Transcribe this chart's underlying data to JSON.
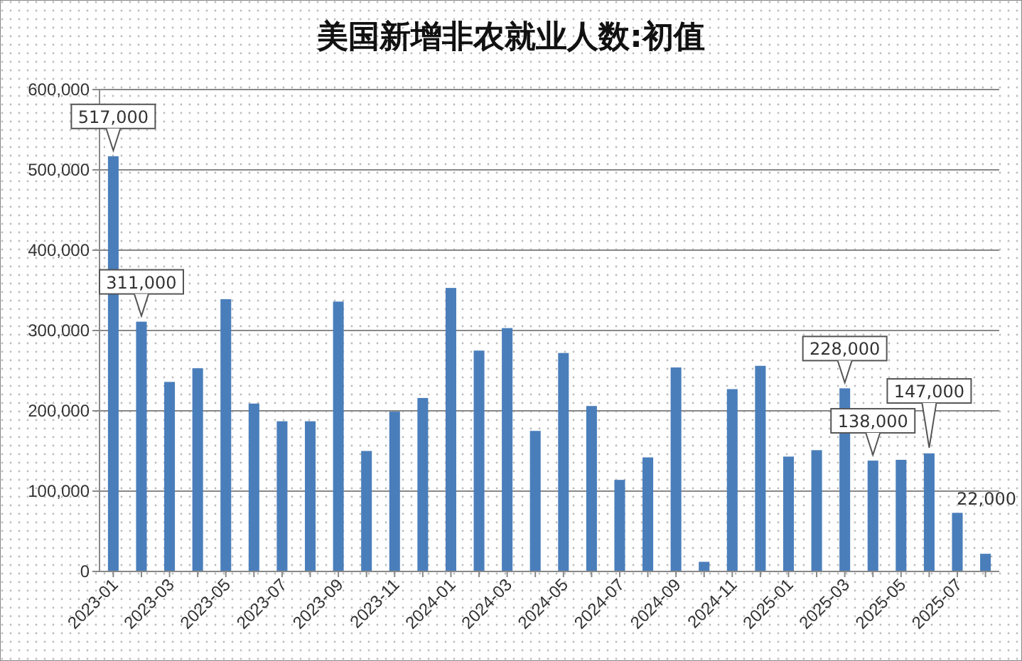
{
  "chart_data": {
    "type": "bar",
    "title": "美国新增非农就业人数:初值",
    "categories": [
      "2023-01",
      null,
      "2023-03",
      null,
      "2023-05",
      null,
      "2023-07",
      null,
      "2023-09",
      null,
      "2023-11",
      null,
      "2024-01",
      null,
      "2024-03",
      null,
      "2024-05",
      null,
      "2024-07",
      null,
      "2024-09",
      null,
      "2024-11",
      null,
      "2025-01",
      null,
      "2025-03",
      null,
      "2025-05",
      null,
      "2025-07",
      null
    ],
    "values": [
      517000,
      311000,
      236000,
      253000,
      339000,
      209000,
      187000,
      187000,
      336000,
      150000,
      199000,
      216000,
      353000,
      275000,
      303000,
      175000,
      272000,
      206000,
      114000,
      142000,
      254000,
      12000,
      227000,
      256000,
      143000,
      151000,
      228000,
      138000,
      139000,
      147000,
      73000,
      22000
    ],
    "value_labels": [
      "517,000",
      "311,000",
      null,
      null,
      null,
      null,
      null,
      null,
      null,
      null,
      null,
      null,
      null,
      null,
      null,
      null,
      null,
      null,
      null,
      null,
      null,
      null,
      null,
      null,
      null,
      null,
      "228,000",
      "138,000",
      null,
      "147,000",
      null,
      "22,000"
    ],
    "color": "#4a7ebb",
    "ylim": [
      0,
      600000
    ],
    "yticks": [
      {
        "value": 0,
        "label": "0"
      },
      {
        "value": 100000,
        "label": "100,000"
      },
      {
        "value": 200000,
        "label": "200,000"
      },
      {
        "value": 300000,
        "label": "300,000"
      },
      {
        "value": 400000,
        "label": "400,000"
      },
      {
        "value": 500000,
        "label": "500,000"
      },
      {
        "value": 600000,
        "label": "600,000"
      }
    ],
    "grid": "y"
  }
}
